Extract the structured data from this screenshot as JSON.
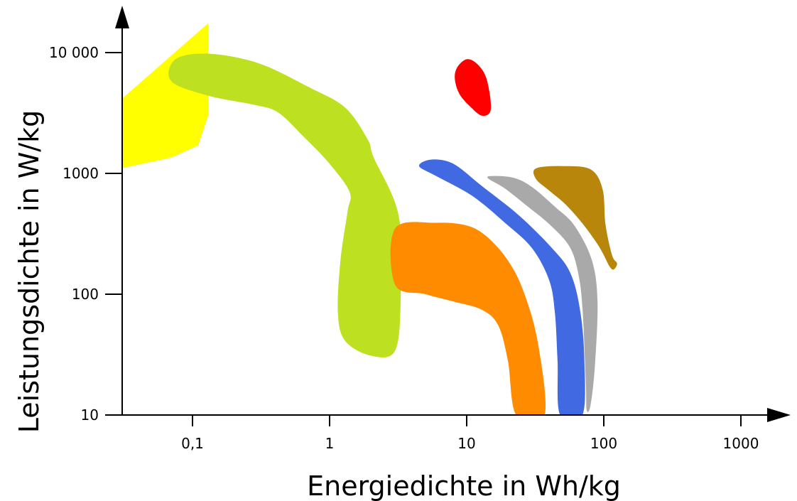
{
  "chart_data": {
    "type": "area",
    "xlabel": "Energiedichte in Wh/kg",
    "ylabel": "Leistungsdichte in W/kg",
    "x_scale": "log",
    "y_scale": "log",
    "xlim": [
      0.028,
      2000
    ],
    "ylim": [
      10,
      15000
    ],
    "x_ticks": [
      {
        "value": 0.1,
        "label": "0,1"
      },
      {
        "value": 1,
        "label": "1"
      },
      {
        "value": 10,
        "label": "10"
      },
      {
        "value": 100,
        "label": "100"
      },
      {
        "value": 1000,
        "label": "1000"
      }
    ],
    "y_ticks": [
      {
        "value": 10,
        "label": "10"
      },
      {
        "value": 100,
        "label": "100"
      },
      {
        "value": 1000,
        "label": "1000"
      },
      {
        "value": 10000,
        "label": "10 000"
      }
    ],
    "grid": false,
    "legend": "none",
    "regions": [
      {
        "id": "yellow",
        "color": "#ffff00",
        "points": [
          [
            0.028,
            3800
          ],
          [
            0.13,
            17500
          ],
          [
            0.13,
            3000
          ],
          [
            0.11,
            1700
          ],
          [
            0.07,
            1350
          ],
          [
            0.028,
            1080
          ]
        ]
      },
      {
        "id": "yellowgreen",
        "color": "#bde021",
        "points": [
          [
            0.075,
            8800
          ],
          [
            0.13,
            9800
          ],
          [
            0.3,
            8200
          ],
          [
            0.7,
            5200
          ],
          [
            1.3,
            3500
          ],
          [
            1.9,
            1900
          ],
          [
            2.1,
            1350
          ],
          [
            3.2,
            440
          ],
          [
            3.3,
            92
          ],
          [
            3.0,
            34
          ],
          [
            2.0,
            31
          ],
          [
            1.3,
            41
          ],
          [
            1.15,
            70
          ],
          [
            1.2,
            190
          ],
          [
            1.35,
            480
          ],
          [
            1.4,
            700
          ],
          [
            1.0,
            1200
          ],
          [
            0.65,
            2000
          ],
          [
            0.42,
            3200
          ],
          [
            0.28,
            3700
          ],
          [
            0.13,
            4400
          ],
          [
            0.07,
            5800
          ]
        ]
      },
      {
        "id": "orange",
        "color": "#ff8c00",
        "points": [
          [
            3.0,
            350
          ],
          [
            6,
            390
          ],
          [
            10,
            370
          ],
          [
            14,
            300
          ],
          [
            20,
            190
          ],
          [
            26,
            105
          ],
          [
            33,
            40
          ],
          [
            37,
            10
          ],
          [
            23,
            10
          ],
          [
            20,
            28
          ],
          [
            17,
            55
          ],
          [
            13,
            74
          ],
          [
            8,
            87
          ],
          [
            5,
            100
          ],
          [
            3.0,
            120
          ]
        ]
      },
      {
        "id": "blue",
        "color": "#4169e1",
        "points": [
          [
            4.5,
            1150
          ],
          [
            5.5,
            1300
          ],
          [
            8,
            1200
          ],
          [
            13,
            780
          ],
          [
            24,
            450
          ],
          [
            42,
            240
          ],
          [
            57,
            150
          ],
          [
            67,
            75
          ],
          [
            72,
            30
          ],
          [
            70,
            10
          ],
          [
            48,
            10
          ],
          [
            46,
            28
          ],
          [
            44,
            70
          ],
          [
            40,
            130
          ],
          [
            30,
            240
          ],
          [
            19,
            390
          ],
          [
            11,
            650
          ],
          [
            6,
            950
          ]
        ]
      },
      {
        "id": "gray",
        "color": "#a9a9a9",
        "points": [
          [
            15,
            950
          ],
          [
            22,
            920
          ],
          [
            30,
            770
          ],
          [
            44,
            530
          ],
          [
            61,
            370
          ],
          [
            82,
            190
          ],
          [
            90,
            85
          ],
          [
            86,
            25
          ],
          [
            80,
            12
          ],
          [
            75,
            11
          ],
          [
            74,
            18
          ],
          [
            70,
            75
          ],
          [
            65,
            150
          ],
          [
            56,
            250
          ],
          [
            40,
            380
          ],
          [
            28,
            530
          ],
          [
            19,
            750
          ],
          [
            14.5,
            900
          ]
        ]
      },
      {
        "id": "darkgoldenrod",
        "color": "#b8860b",
        "points": [
          [
            32,
            1100
          ],
          [
            50,
            1150
          ],
          [
            80,
            1080
          ],
          [
            98,
            740
          ],
          [
            103,
            375
          ],
          [
            115,
            210
          ],
          [
            125,
            180
          ],
          [
            118,
            160
          ],
          [
            110,
            170
          ],
          [
            98,
            220
          ],
          [
            86,
            280
          ],
          [
            68,
            400
          ],
          [
            52,
            560
          ],
          [
            40,
            720
          ],
          [
            32,
            900
          ]
        ]
      },
      {
        "id": "red",
        "color": "#ff0000",
        "points": [
          [
            8.2,
            6000
          ],
          [
            8.5,
            7500
          ],
          [
            10,
            8800
          ],
          [
            12,
            8000
          ],
          [
            14,
            6000
          ],
          [
            15,
            3400
          ],
          [
            13,
            3000
          ],
          [
            10.8,
            3500
          ],
          [
            8.9,
            4500
          ]
        ]
      }
    ]
  }
}
